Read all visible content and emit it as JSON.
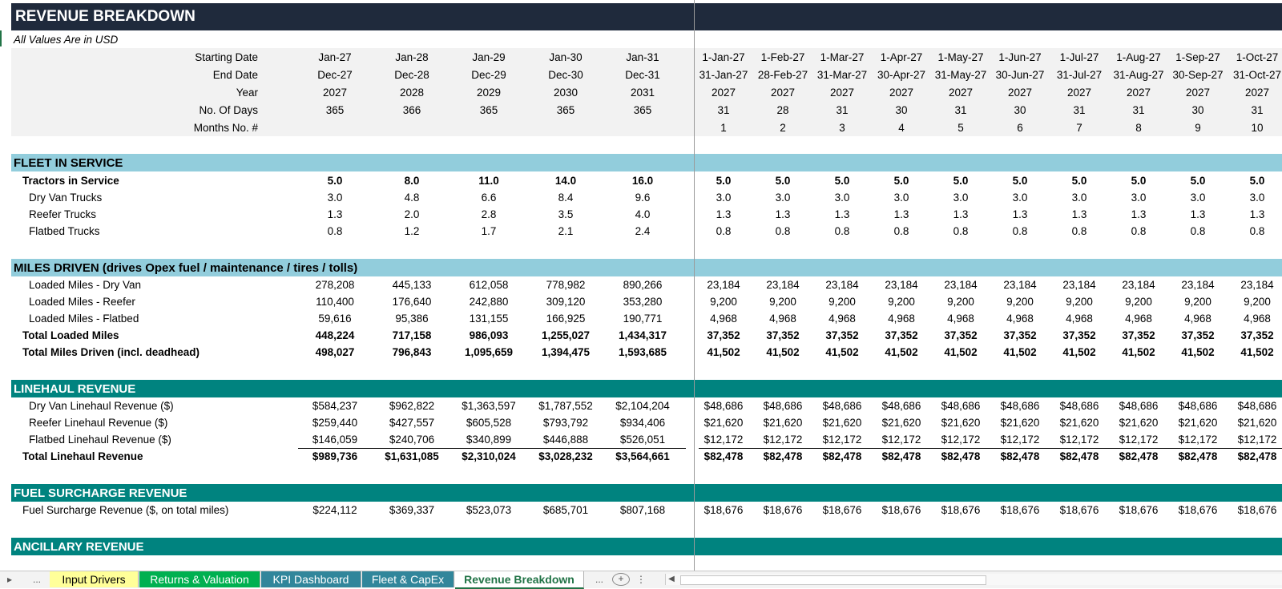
{
  "title": "REVENUE BREAKDOWN",
  "subtitle": "All Values Are in USD",
  "colors": {
    "title_bg": "#1f2a3c",
    "light_blue": "#92cddc",
    "teal": "#00837f",
    "header_gray": "#f2f2f2",
    "tab_yellow": "#ffff99",
    "tab_green": "#00b050",
    "tab_teal": "#31869b"
  },
  "header": [
    {
      "label": "Starting Date",
      "annual": [
        "Jan-27",
        "Jan-28",
        "Jan-29",
        "Jan-30",
        "Jan-31"
      ],
      "monthly": [
        "1-Jan-27",
        "1-Feb-27",
        "1-Mar-27",
        "1-Apr-27",
        "1-May-27",
        "1-Jun-27",
        "1-Jul-27",
        "1-Aug-27",
        "1-Sep-27",
        "1-Oct-27"
      ]
    },
    {
      "label": "End Date",
      "annual": [
        "Dec-27",
        "Dec-28",
        "Dec-29",
        "Dec-30",
        "Dec-31"
      ],
      "monthly": [
        "31-Jan-27",
        "28-Feb-27",
        "31-Mar-27",
        "30-Apr-27",
        "31-May-27",
        "30-Jun-27",
        "31-Jul-27",
        "31-Aug-27",
        "30-Sep-27",
        "31-Oct-27"
      ]
    },
    {
      "label": "Year",
      "annual": [
        "2027",
        "2028",
        "2029",
        "2030",
        "2031"
      ],
      "monthly": [
        "2027",
        "2027",
        "2027",
        "2027",
        "2027",
        "2027",
        "2027",
        "2027",
        "2027",
        "2027"
      ]
    },
    {
      "label": "No. Of Days",
      "annual": [
        "365",
        "366",
        "365",
        "365",
        "365"
      ],
      "monthly": [
        "31",
        "28",
        "31",
        "30",
        "31",
        "30",
        "31",
        "31",
        "30",
        "31"
      ]
    },
    {
      "label": "Months No. #",
      "annual": [
        "",
        "",
        "",
        "",
        ""
      ],
      "monthly": [
        "1",
        "2",
        "3",
        "4",
        "5",
        "6",
        "7",
        "8",
        "9",
        "10"
      ]
    }
  ],
  "sections": [
    {
      "title": "FLEET IN SERVICE",
      "style": "light",
      "rows": [
        {
          "label": "Tractors in Service",
          "bold": true,
          "indent": 1,
          "annual": [
            "5.0",
            "8.0",
            "11.0",
            "14.0",
            "16.0"
          ],
          "monthly": [
            "5.0",
            "5.0",
            "5.0",
            "5.0",
            "5.0",
            "5.0",
            "5.0",
            "5.0",
            "5.0",
            "5.0"
          ]
        },
        {
          "label": "Dry Van Trucks",
          "indent": 2,
          "annual": [
            "3.0",
            "4.8",
            "6.6",
            "8.4",
            "9.6"
          ],
          "monthly": [
            "3.0",
            "3.0",
            "3.0",
            "3.0",
            "3.0",
            "3.0",
            "3.0",
            "3.0",
            "3.0",
            "3.0"
          ]
        },
        {
          "label": "Reefer Trucks",
          "indent": 2,
          "annual": [
            "1.3",
            "2.0",
            "2.8",
            "3.5",
            "4.0"
          ],
          "monthly": [
            "1.3",
            "1.3",
            "1.3",
            "1.3",
            "1.3",
            "1.3",
            "1.3",
            "1.3",
            "1.3",
            "1.3"
          ]
        },
        {
          "label": "Flatbed Trucks",
          "indent": 2,
          "annual": [
            "0.8",
            "1.2",
            "1.7",
            "2.1",
            "2.4"
          ],
          "monthly": [
            "0.8",
            "0.8",
            "0.8",
            "0.8",
            "0.8",
            "0.8",
            "0.8",
            "0.8",
            "0.8",
            "0.8"
          ]
        }
      ]
    },
    {
      "title": "MILES DRIVEN  (drives Opex fuel / maintenance / tires / tolls)",
      "style": "light",
      "rows": [
        {
          "label": "Loaded Miles - Dry Van",
          "indent": 2,
          "annual": [
            "278,208",
            "445,133",
            "612,058",
            "778,982",
            "890,266"
          ],
          "monthly": [
            "23,184",
            "23,184",
            "23,184",
            "23,184",
            "23,184",
            "23,184",
            "23,184",
            "23,184",
            "23,184",
            "23,184"
          ]
        },
        {
          "label": "Loaded Miles - Reefer",
          "indent": 2,
          "annual": [
            "110,400",
            "176,640",
            "242,880",
            "309,120",
            "353,280"
          ],
          "monthly": [
            "9,200",
            "9,200",
            "9,200",
            "9,200",
            "9,200",
            "9,200",
            "9,200",
            "9,200",
            "9,200",
            "9,200"
          ]
        },
        {
          "label": "Loaded Miles - Flatbed",
          "indent": 2,
          "annual": [
            "59,616",
            "95,386",
            "131,155",
            "166,925",
            "190,771"
          ],
          "monthly": [
            "4,968",
            "4,968",
            "4,968",
            "4,968",
            "4,968",
            "4,968",
            "4,968",
            "4,968",
            "4,968",
            "4,968"
          ]
        },
        {
          "label": "Total Loaded Miles",
          "bold": true,
          "indent": 1,
          "annual": [
            "448,224",
            "717,158",
            "986,093",
            "1,255,027",
            "1,434,317"
          ],
          "monthly": [
            "37,352",
            "37,352",
            "37,352",
            "37,352",
            "37,352",
            "37,352",
            "37,352",
            "37,352",
            "37,352",
            "37,352"
          ]
        },
        {
          "label": "Total Miles Driven (incl. deadhead)",
          "bold": true,
          "indent": 1,
          "annual": [
            "498,027",
            "796,843",
            "1,095,659",
            "1,394,475",
            "1,593,685"
          ],
          "monthly": [
            "41,502",
            "41,502",
            "41,502",
            "41,502",
            "41,502",
            "41,502",
            "41,502",
            "41,502",
            "41,502",
            "41,502"
          ]
        }
      ]
    },
    {
      "title": "LINEHAUL REVENUE",
      "style": "teal",
      "rows": [
        {
          "label": "Dry Van Linehaul Revenue ($)",
          "indent": 2,
          "annual": [
            "$584,237",
            "$962,822",
            "$1,363,597",
            "$1,787,552",
            "$2,104,204"
          ],
          "monthly": [
            "$48,686",
            "$48,686",
            "$48,686",
            "$48,686",
            "$48,686",
            "$48,686",
            "$48,686",
            "$48,686",
            "$48,686",
            "$48,686"
          ]
        },
        {
          "label": "Reefer Linehaul Revenue ($)",
          "indent": 2,
          "annual": [
            "$259,440",
            "$427,557",
            "$605,528",
            "$793,792",
            "$934,406"
          ],
          "monthly": [
            "$21,620",
            "$21,620",
            "$21,620",
            "$21,620",
            "$21,620",
            "$21,620",
            "$21,620",
            "$21,620",
            "$21,620",
            "$21,620"
          ]
        },
        {
          "label": "Flatbed Linehaul Revenue ($)",
          "indent": 2,
          "underline": true,
          "annual": [
            "$146,059",
            "$240,706",
            "$340,899",
            "$446,888",
            "$526,051"
          ],
          "monthly": [
            "$12,172",
            "$12,172",
            "$12,172",
            "$12,172",
            "$12,172",
            "$12,172",
            "$12,172",
            "$12,172",
            "$12,172",
            "$12,172"
          ]
        },
        {
          "label": "Total Linehaul Revenue",
          "bold": true,
          "indent": 1,
          "annual": [
            "$989,736",
            "$1,631,085",
            "$2,310,024",
            "$3,028,232",
            "$3,564,661"
          ],
          "monthly": [
            "$82,478",
            "$82,478",
            "$82,478",
            "$82,478",
            "$82,478",
            "$82,478",
            "$82,478",
            "$82,478",
            "$82,478",
            "$82,478"
          ]
        }
      ]
    },
    {
      "title": "FUEL SURCHARGE REVENUE",
      "style": "teal",
      "rows": [
        {
          "label": "Fuel Surcharge Revenue ($, on total miles)",
          "indent": 1,
          "annual": [
            "$224,112",
            "$369,337",
            "$523,073",
            "$685,701",
            "$807,168"
          ],
          "monthly": [
            "$18,676",
            "$18,676",
            "$18,676",
            "$18,676",
            "$18,676",
            "$18,676",
            "$18,676",
            "$18,676",
            "$18,676",
            "$18,676"
          ]
        }
      ]
    },
    {
      "title": "ANCILLARY REVENUE",
      "style": "teal",
      "rows": []
    }
  ],
  "tabs": {
    "nav_prev": "◀",
    "nav_next": "▶",
    "ellipsis": "...",
    "items": [
      {
        "label": "Input Drivers",
        "color": "yellow"
      },
      {
        "label": "Returns & Valuation",
        "color": "green"
      },
      {
        "label": "KPI Dashboard",
        "color": "teal"
      },
      {
        "label": "Fleet & CapEx",
        "color": "teal"
      },
      {
        "label": "Revenue Breakdown",
        "color": "active"
      }
    ],
    "more": "...",
    "add": "+"
  }
}
